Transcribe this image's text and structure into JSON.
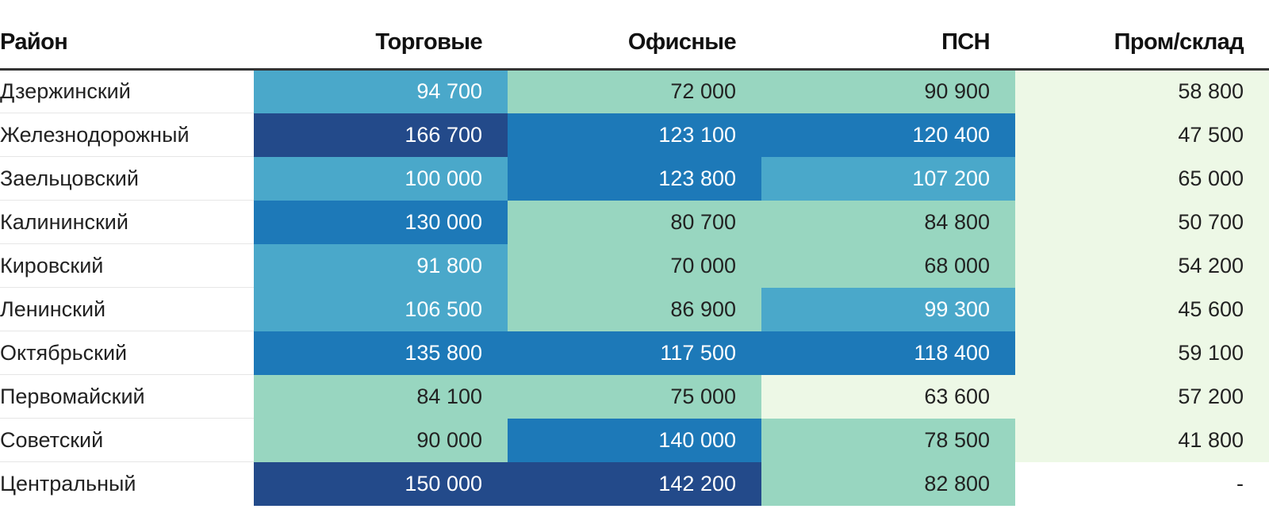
{
  "chart_data": {
    "type": "table",
    "columns": [
      "Район",
      "Торговые",
      "Офисные",
      "ПСН",
      "Пром/склад"
    ],
    "rows": [
      {
        "district": "Дзержинский",
        "values": [
          "94 700",
          "72 000",
          "90 900",
          "58 800"
        ],
        "levels": [
          3,
          2,
          2,
          1
        ]
      },
      {
        "district": "Железнодорожный",
        "values": [
          "166 700",
          "123 100",
          "120 400",
          "47 500"
        ],
        "levels": [
          5,
          4,
          4,
          1
        ]
      },
      {
        "district": "Заельцовский",
        "values": [
          "100 000",
          "123 800",
          "107 200",
          "65 000"
        ],
        "levels": [
          3,
          4,
          3,
          1
        ]
      },
      {
        "district": "Калининский",
        "values": [
          "130 000",
          "80 700",
          "84 800",
          "50 700"
        ],
        "levels": [
          4,
          2,
          2,
          1
        ]
      },
      {
        "district": "Кировский",
        "values": [
          "91 800",
          "70 000",
          "68 000",
          "54 200"
        ],
        "levels": [
          3,
          2,
          2,
          1
        ]
      },
      {
        "district": "Ленинский",
        "values": [
          "106 500",
          "86 900",
          "99 300",
          "45 600"
        ],
        "levels": [
          3,
          2,
          3,
          1
        ]
      },
      {
        "district": "Октябрьский",
        "values": [
          "135 800",
          "117 500",
          "118 400",
          "59 100"
        ],
        "levels": [
          4,
          4,
          4,
          1
        ]
      },
      {
        "district": "Первомайский",
        "values": [
          "84 100",
          "75 000",
          "63 600",
          "57 200"
        ],
        "levels": [
          2,
          2,
          1,
          1
        ]
      },
      {
        "district": "Советский",
        "values": [
          "90 000",
          "140 000",
          "78 500",
          "41 800"
        ],
        "levels": [
          2,
          4,
          2,
          1
        ]
      },
      {
        "district": "Центральный",
        "values": [
          "150 000",
          "142 200",
          "82 800",
          "-"
        ],
        "levels": [
          5,
          5,
          2,
          0
        ]
      }
    ],
    "palette": [
      "#ffffff",
      "#edf8e6",
      "#98d6c0",
      "#4aa8ca",
      "#1d79b8",
      "#234a8a"
    ]
  }
}
